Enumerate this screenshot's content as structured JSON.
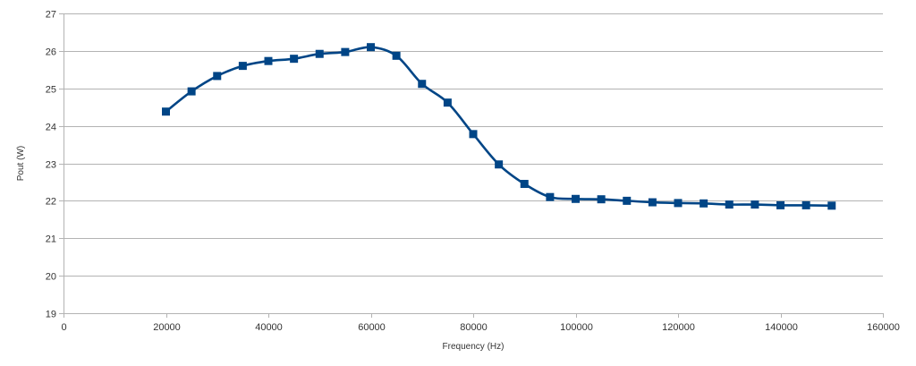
{
  "chart_data": {
    "type": "line",
    "title": "",
    "xlabel": "Frequency (Hz)",
    "ylabel": "Pout (W)",
    "xlim": [
      0,
      160000
    ],
    "ylim": [
      19,
      27
    ],
    "x_ticks": [
      0,
      20000,
      40000,
      60000,
      80000,
      100000,
      120000,
      140000,
      160000
    ],
    "y_ticks": [
      19,
      20,
      21,
      22,
      23,
      24,
      25,
      26,
      27
    ],
    "grid": "horizontal",
    "legend": "none",
    "smooth": true,
    "marker": "square",
    "color": "#004586",
    "series": [
      {
        "x": [
          20000,
          25000,
          30000,
          35000,
          40000,
          45000,
          50000,
          55000,
          60000,
          65000,
          70000,
          75000,
          80000,
          85000,
          90000,
          95000,
          100000,
          105000,
          110000,
          115000,
          120000,
          125000,
          130000,
          135000,
          140000,
          145000,
          150000
        ],
        "y": [
          24.38,
          24.92,
          25.33,
          25.6,
          25.73,
          25.79,
          25.92,
          25.97,
          26.1,
          25.87,
          25.12,
          24.62,
          23.78,
          22.97,
          22.45,
          22.1,
          22.05,
          22.04,
          22.0,
          21.96,
          21.94,
          21.93,
          21.9,
          21.9,
          21.88,
          21.88,
          21.87
        ]
      }
    ]
  }
}
